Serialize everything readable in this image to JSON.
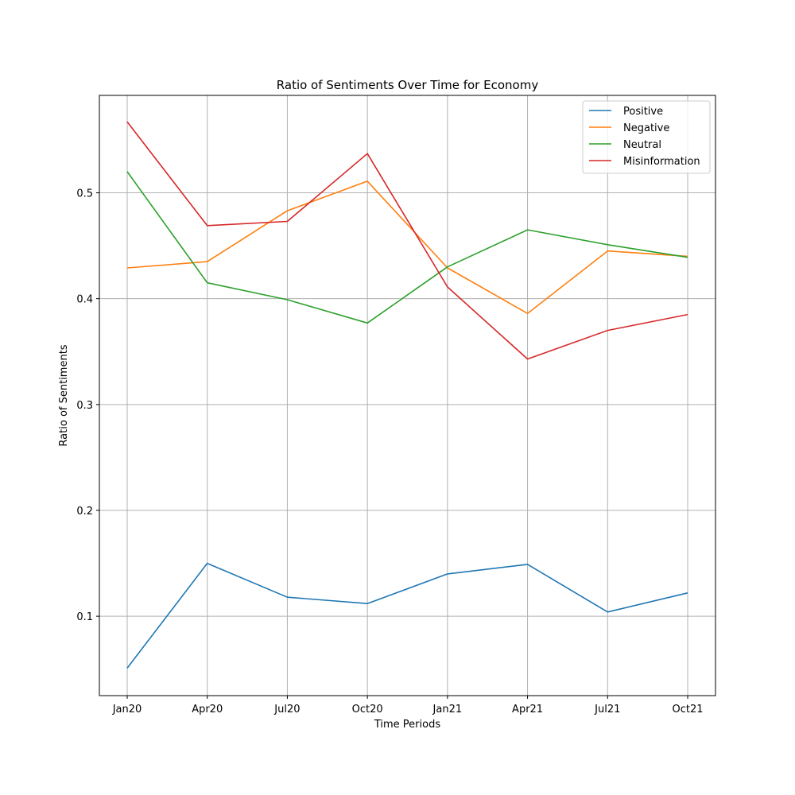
{
  "chart_data": {
    "type": "line",
    "title": "Ratio of Sentiments Over Time for Economy",
    "xlabel": "Time Periods",
    "ylabel": "Ratio of Sentiments",
    "categories": [
      "Jan20",
      "Apr20",
      "Jul20",
      "Oct20",
      "Jan21",
      "Apr21",
      "Jul21",
      "Oct21"
    ],
    "yticks": [
      "0.1",
      "0.2",
      "0.3",
      "0.4",
      "0.5"
    ],
    "ylim": [
      0.025,
      0.592
    ],
    "grid": true,
    "legend_position": "top-right",
    "series": [
      {
        "name": "Positive",
        "color": "#1f77b4",
        "values": [
          0.051,
          0.15,
          0.118,
          0.112,
          0.14,
          0.149,
          0.104,
          0.122
        ]
      },
      {
        "name": "Negative",
        "color": "#ff7f0e",
        "values": [
          0.429,
          0.435,
          0.483,
          0.511,
          0.429,
          0.386,
          0.445,
          0.44
        ]
      },
      {
        "name": "Neutral",
        "color": "#2ca02c",
        "values": [
          0.52,
          0.415,
          0.399,
          0.377,
          0.43,
          0.465,
          0.451,
          0.439
        ]
      },
      {
        "name": "Misinformation",
        "color": "#d62728",
        "values": [
          0.567,
          0.469,
          0.473,
          0.537,
          0.411,
          0.343,
          0.37,
          0.385
        ]
      }
    ]
  }
}
